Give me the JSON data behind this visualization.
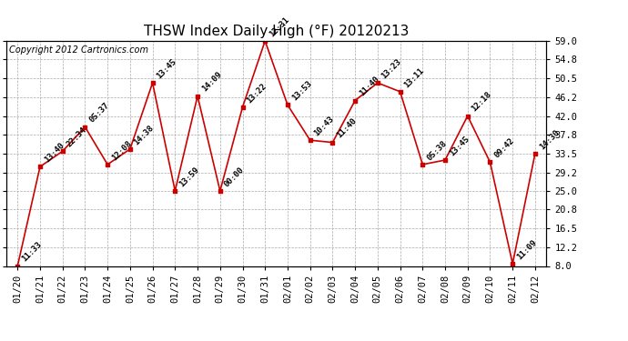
{
  "title": "THSW Index Daily High (°F) 20120213",
  "copyright": "Copyright 2012 Cartronics.com",
  "x_labels": [
    "01/20",
    "01/21",
    "01/22",
    "01/23",
    "01/24",
    "01/25",
    "01/26",
    "01/27",
    "01/28",
    "01/29",
    "01/30",
    "01/31",
    "02/01",
    "02/02",
    "02/03",
    "02/04",
    "02/05",
    "02/06",
    "02/07",
    "02/08",
    "02/09",
    "02/10",
    "02/11",
    "02/12"
  ],
  "y_values": [
    8.0,
    30.5,
    34.0,
    39.5,
    31.0,
    34.5,
    49.5,
    25.0,
    46.5,
    25.0,
    44.0,
    59.0,
    44.5,
    36.5,
    36.0,
    45.5,
    49.5,
    47.5,
    31.0,
    32.0,
    42.0,
    31.5,
    8.5,
    33.5
  ],
  "point_labels": [
    "11:33",
    "13:40",
    "22:34",
    "05:37",
    "12:08",
    "14:38",
    "13:45",
    "13:59",
    "14:09",
    "00:00",
    "13:22",
    "12:31",
    "13:53",
    "10:43",
    "11:40",
    "11:40",
    "13:23",
    "13:11",
    "05:38",
    "13:45",
    "12:18",
    "09:42",
    "11:09",
    "14:30"
  ],
  "line_color": "#cc0000",
  "marker_color": "#cc0000",
  "bg_color": "#ffffff",
  "plot_bg_color": "#ffffff",
  "grid_color": "#aaaaaa",
  "title_fontsize": 11,
  "copyright_fontsize": 7,
  "label_fontsize": 6.5,
  "tick_fontsize": 7.5,
  "ylim": [
    8.0,
    59.0
  ],
  "yticks": [
    8.0,
    12.2,
    16.5,
    20.8,
    25.0,
    29.2,
    33.5,
    37.8,
    42.0,
    46.2,
    50.5,
    54.8,
    59.0
  ]
}
